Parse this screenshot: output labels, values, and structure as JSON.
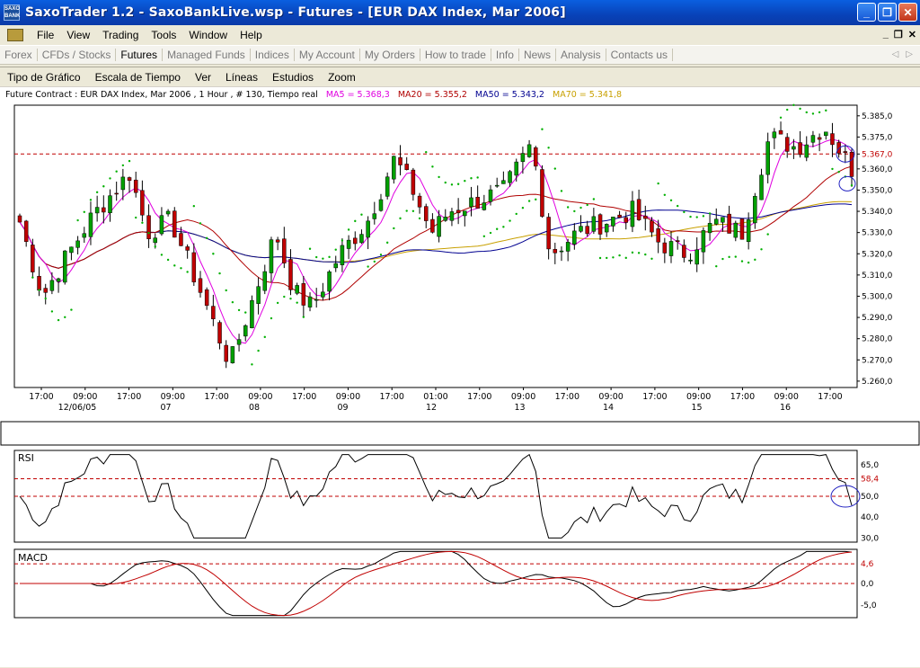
{
  "window": {
    "title": "SaxoTrader 1.2 - SaxoBankLive.wsp - Futures - [EUR DAX Index, Mar 2006]",
    "app_icon_text": "SAXO BANK"
  },
  "menu": [
    "File",
    "View",
    "Trading",
    "Tools",
    "Window",
    "Help"
  ],
  "nav_tabs": [
    {
      "label": "Forex",
      "active": false
    },
    {
      "label": "CFDs / Stocks",
      "active": false
    },
    {
      "label": "Futures",
      "active": true
    },
    {
      "label": "Managed Funds",
      "active": false
    },
    {
      "label": "Indices",
      "active": false
    },
    {
      "label": "My Account",
      "active": false
    },
    {
      "label": "My Orders",
      "active": false
    },
    {
      "label": "How to trade",
      "active": false
    },
    {
      "label": "Info",
      "active": false
    },
    {
      "label": "News",
      "active": false
    },
    {
      "label": "Analysis",
      "active": false
    },
    {
      "label": "Contacts us",
      "active": false
    }
  ],
  "chart_menu": [
    "Tipo de Gráfico",
    "Escala de Tiempo",
    "Ver",
    "Líneas",
    "Estudios",
    "Zoom"
  ],
  "info": {
    "contract": "Future Contract : EUR DAX Index, Mar 2006 , 1 Hour , # 130, Tiempo real",
    "ma5": "MA5 = 5.368,3",
    "ma20": "MA20 = 5.355,2",
    "ma50": "MA50 = 5.343,2",
    "ma70": "MA70 = 5.341,8"
  },
  "colors": {
    "ma5": "#e000e0",
    "ma20": "#b00000",
    "ma50": "#000090",
    "ma70": "#c8a000",
    "bull": "#00a000",
    "bear": "#c00000",
    "sar": "#00b000"
  },
  "chart_data": [
    {
      "type": "candlestick",
      "name": "price",
      "y_ticks": [
        "5.385,0",
        "5.375,0",
        "5.367,0",
        "5.360,0",
        "5.350,0",
        "5.340,0",
        "5.330,0",
        "5.320,0",
        "5.310,0",
        "5.300,0",
        "5.290,0",
        "5.280,0",
        "5.270,0",
        "5.260,0"
      ],
      "ylim": [
        5257,
        5390
      ],
      "last_price_label": "5.367,0",
      "last_price": 5367.0,
      "x_time_labels": [
        "17:00",
        "09:00",
        "17:00",
        "09:00",
        "17:00",
        "09:00",
        "17:00",
        "09:00",
        "17:00",
        "01:00",
        "17:00",
        "09:00",
        "17:00",
        "09:00",
        "17:00",
        "09:00",
        "17:00",
        "09:00",
        "17:00"
      ],
      "x_date_labels": [
        "12/06/05",
        "07",
        "08",
        "09",
        "12",
        "13",
        "14",
        "15",
        "16"
      ]
    },
    {
      "type": "line",
      "name": "RSI",
      "title": "RSI",
      "y_ticks": [
        "65,0",
        "58,4",
        "50,0",
        "40,0",
        "30,0"
      ],
      "ylim": [
        28,
        72
      ],
      "last_value": 58.4
    },
    {
      "type": "line",
      "name": "MACD",
      "title": "MACD",
      "y_ticks": [
        "4,6",
        "0,0",
        "-5,0"
      ],
      "ylim": [
        -8,
        8
      ],
      "last_value": 4.6
    }
  ]
}
